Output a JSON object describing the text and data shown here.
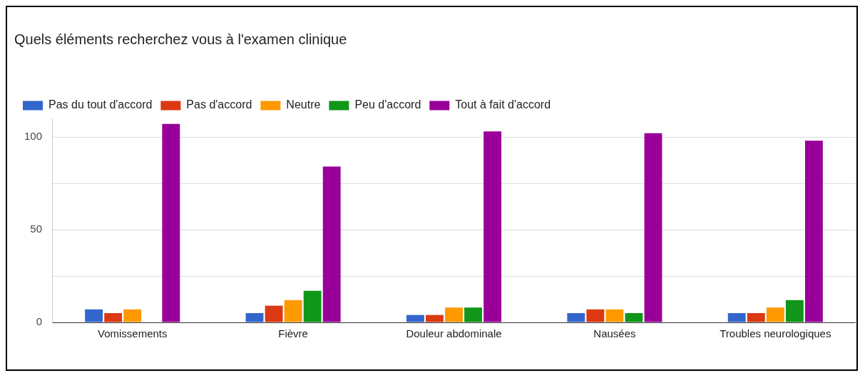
{
  "chart_data": {
    "type": "bar",
    "title": "Quels éléments recherchez vous à l'examen clinique",
    "categories": [
      "Vomissements",
      "Fièvre",
      "Douleur abdominale",
      "Nausées",
      "Troubles neurologiques"
    ],
    "series": [
      {
        "name": "Pas du tout d'accord",
        "color": "#3366cc",
        "values": [
          7,
          5,
          4,
          5,
          5
        ]
      },
      {
        "name": "Pas d'accord",
        "color": "#dc3912",
        "values": [
          5,
          9,
          4,
          7,
          5
        ]
      },
      {
        "name": "Neutre",
        "color": "#ff9900",
        "values": [
          7,
          12,
          8,
          7,
          8
        ]
      },
      {
        "name": "Peu d'accord",
        "color": "#109618",
        "values": [
          0,
          17,
          8,
          5,
          12
        ]
      },
      {
        "name": "Tout à fait d'accord",
        "color": "#990099",
        "values": [
          107,
          84,
          103,
          102,
          98
        ]
      }
    ],
    "ylim": [
      0,
      110
    ],
    "yticks": [
      0,
      {
        "value": 25,
        "label": null
      },
      50,
      {
        "value": 75,
        "label": null
      },
      100
    ],
    "grid": "y",
    "legend": "top left"
  }
}
